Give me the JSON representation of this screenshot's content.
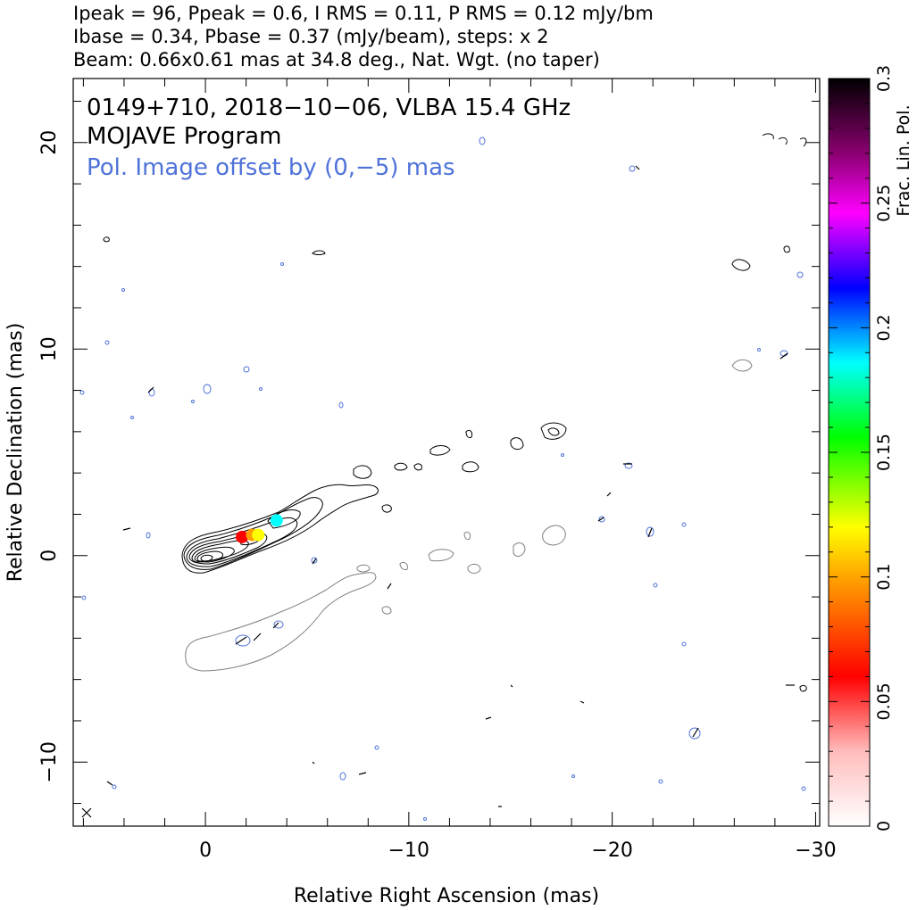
{
  "header": {
    "line1": "Ipeak = 96, Ppeak = 0.6, I RMS = 0.11, P RMS = 0.12 mJy/bm",
    "line2": "Ibase = 0.34, Pbase = 0.37 (mJy/beam), steps: x 2",
    "line3": "Beam: 0.66x0.61 mas at 34.8 deg., Nat. Wgt. (no taper)"
  },
  "annotations": {
    "source_line": "0149+710, 2018−10−06, VLBA 15.4 GHz",
    "program_line": "MOJAVE Program",
    "offset_line": "Pol. Image offset by (0,−5) mas",
    "offset_color": "#4f72d9"
  },
  "chart_data": {
    "type": "contour",
    "xlabel": "Relative Right Ascension (mas)",
    "ylabel": "Relative Declination (mas)",
    "xlim": [
      6.5,
      -30.2
    ],
    "ylim": [
      -13.1,
      23.1
    ],
    "xticks": [
      0,
      -10,
      -20,
      -30
    ],
    "xtick_labels": [
      "0",
      "−10",
      "−20",
      "−30"
    ],
    "yticks": [
      -10,
      0,
      10,
      20
    ],
    "ytick_labels": [
      "−10",
      "0",
      "10",
      "20"
    ],
    "colorbar": {
      "label": "Frac. Lin. Pol.",
      "range": [
        0,
        0.3
      ],
      "ticks": [
        0,
        0.05,
        0.1,
        0.15,
        0.2,
        0.25,
        0.3
      ],
      "tick_labels": [
        "0",
        "0.05",
        "0.1",
        "0.15",
        "0.2",
        "0.25",
        "0.3"
      ]
    },
    "core": {
      "x": 0,
      "y": 0
    },
    "total_intensity_contour_centers": [
      {
        "x": 0,
        "y": 0
      },
      {
        "x": -2.2,
        "y": 1.0
      },
      {
        "x": -4.2,
        "y": 2.0
      },
      {
        "x": -6.5,
        "y": 3.0
      },
      {
        "x": -8.0,
        "y": 3.3
      }
    ],
    "polarization_points": [
      {
        "x": -1.8,
        "y": 0.9,
        "frac": 0.07
      },
      {
        "x": -2.3,
        "y": 1.0,
        "frac": 0.11
      },
      {
        "x": -2.6,
        "y": 1.0,
        "frac": 0.14
      },
      {
        "x": -3.5,
        "y": 1.7,
        "frac": 0.2
      }
    ],
    "beam_marker": {
      "x": 6.0,
      "y": -12.4
    }
  }
}
